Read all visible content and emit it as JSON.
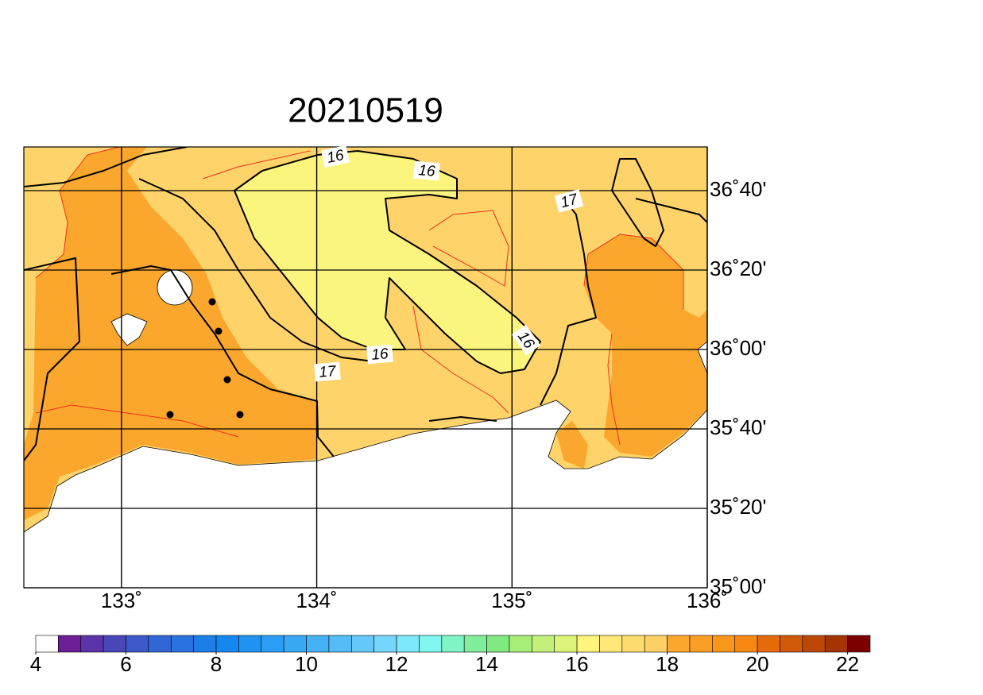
{
  "title": "20210519",
  "map": {
    "xlim": [
      132.5,
      136
    ],
    "ylim": [
      35,
      36.85
    ],
    "xticks": [
      {
        "value": 133,
        "label": "133˚"
      },
      {
        "value": 134,
        "label": "134˚"
      },
      {
        "value": 135,
        "label": "135˚"
      },
      {
        "value": 136,
        "label": "136˚"
      }
    ],
    "yticks": [
      {
        "value": 35,
        "label": "35˚00'"
      },
      {
        "value": 35.3333,
        "label": "35˚20'"
      },
      {
        "value": 35.6667,
        "label": "35˚40'"
      },
      {
        "value": 36,
        "label": "36˚00'"
      },
      {
        "value": 36.3333,
        "label": "36˚20'"
      },
      {
        "value": 36.6667,
        "label": "36˚40'"
      }
    ],
    "contour_labels": [
      16,
      16,
      17,
      16,
      16,
      17
    ]
  },
  "colorbar": {
    "lim": [
      4,
      22.5
    ],
    "ticks": [
      4,
      6,
      8,
      10,
      12,
      14,
      16,
      18,
      20,
      22
    ],
    "colors": [
      "#ffffff",
      "#6b1e96",
      "#5a34a8",
      "#4b46b8",
      "#3d58c8",
      "#3166d6",
      "#2a72e0",
      "#1e7ee8",
      "#1488f0",
      "#1e93f2",
      "#2a9ef4",
      "#38a8f5",
      "#46b2f6",
      "#56bcf7",
      "#66c8f8",
      "#74d6fa",
      "#7ee8fb",
      "#80f6ee",
      "#80f4c4",
      "#80ee9c",
      "#80ea80",
      "#a6ee78",
      "#c2f078",
      "#dcf47a",
      "#fff57a",
      "#ffe877",
      "#fedc6e",
      "#fdd166",
      "#fba72e",
      "#fb9e24",
      "#fa961a",
      "#f98812",
      "#e46a0a",
      "#d05a08",
      "#bc4806",
      "#a43404",
      "#7c0000"
    ]
  }
}
